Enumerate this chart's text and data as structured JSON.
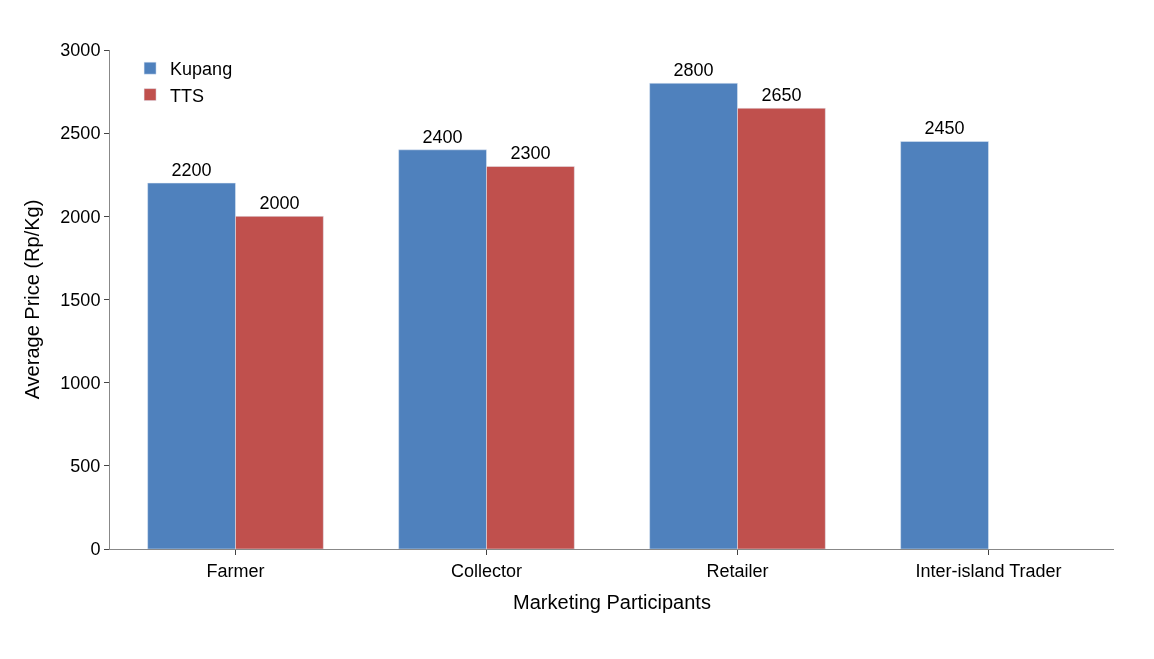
{
  "chart_data": {
    "type": "bar",
    "xlabel": "Marketing Participants",
    "ylabel": "Average Price (Rp/Kg)",
    "categories": [
      "Farmer",
      "Collector",
      "Retailer",
      "Inter-island Trader"
    ],
    "series": [
      {
        "name": "Kupang",
        "color": "#4f81bd",
        "values": [
          2200,
          2400,
          2800,
          2450
        ]
      },
      {
        "name": "TTS",
        "color": "#c0504d",
        "values": [
          2000,
          2300,
          2650,
          null
        ]
      }
    ],
    "ylim": [
      0,
      3000
    ],
    "yticks": [
      0,
      500,
      1000,
      1500,
      2000,
      2500,
      3000
    ],
    "grid": false,
    "legend": "top left",
    "data_labels": true
  }
}
